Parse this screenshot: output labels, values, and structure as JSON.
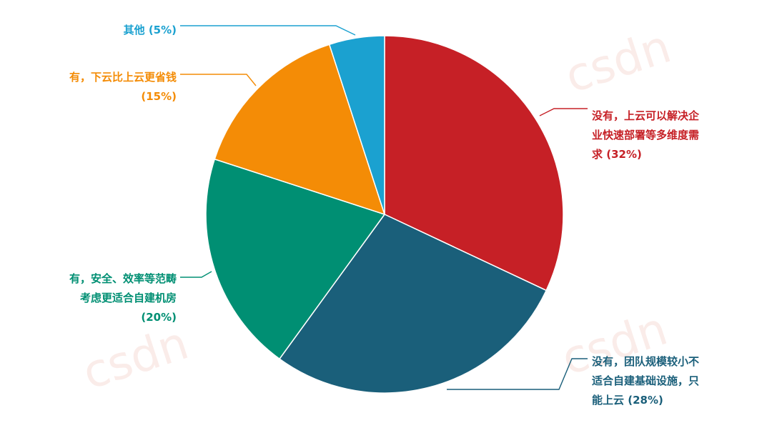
{
  "watermark": "csdn",
  "chart_data": {
    "type": "pie",
    "title": "",
    "start_angle_deg": 0,
    "direction": "clockwise",
    "slices": [
      {
        "name": "没有，上云可以解决企业快速部署等多维度需求",
        "value": 32,
        "value_label": "(32%)",
        "color": "#c62026",
        "label_lines": [
          "没有，上云可以解决企",
          "业快速部署等多维度需",
          "求 (32%)"
        ]
      },
      {
        "name": "没有，团队规模较小不适合自建基础设施，只能上云",
        "value": 28,
        "value_label": "(28%)",
        "color": "#1a5f7a",
        "label_lines": [
          "没有，团队规模较小不",
          "适合自建基础设施，只",
          "能上云 (28%)"
        ]
      },
      {
        "name": "有，安全、效率等范畴考虑更适合自建机房",
        "value": 20,
        "value_label": "(20%)",
        "color": "#008f73",
        "label_lines": [
          "有，安全、效率等范畴",
          "考虑更适合自建机房",
          "(20%)"
        ]
      },
      {
        "name": "有，下云比上云更省钱",
        "value": 15,
        "value_label": "(15%)",
        "color": "#f48c06",
        "label_lines": [
          "有，下云比上云更省钱",
          "(15%)"
        ]
      },
      {
        "name": "其他",
        "value": 5,
        "value_label": "(5%)",
        "color": "#1ba1d0",
        "label_lines": [
          "其他 (5%)"
        ]
      }
    ]
  }
}
